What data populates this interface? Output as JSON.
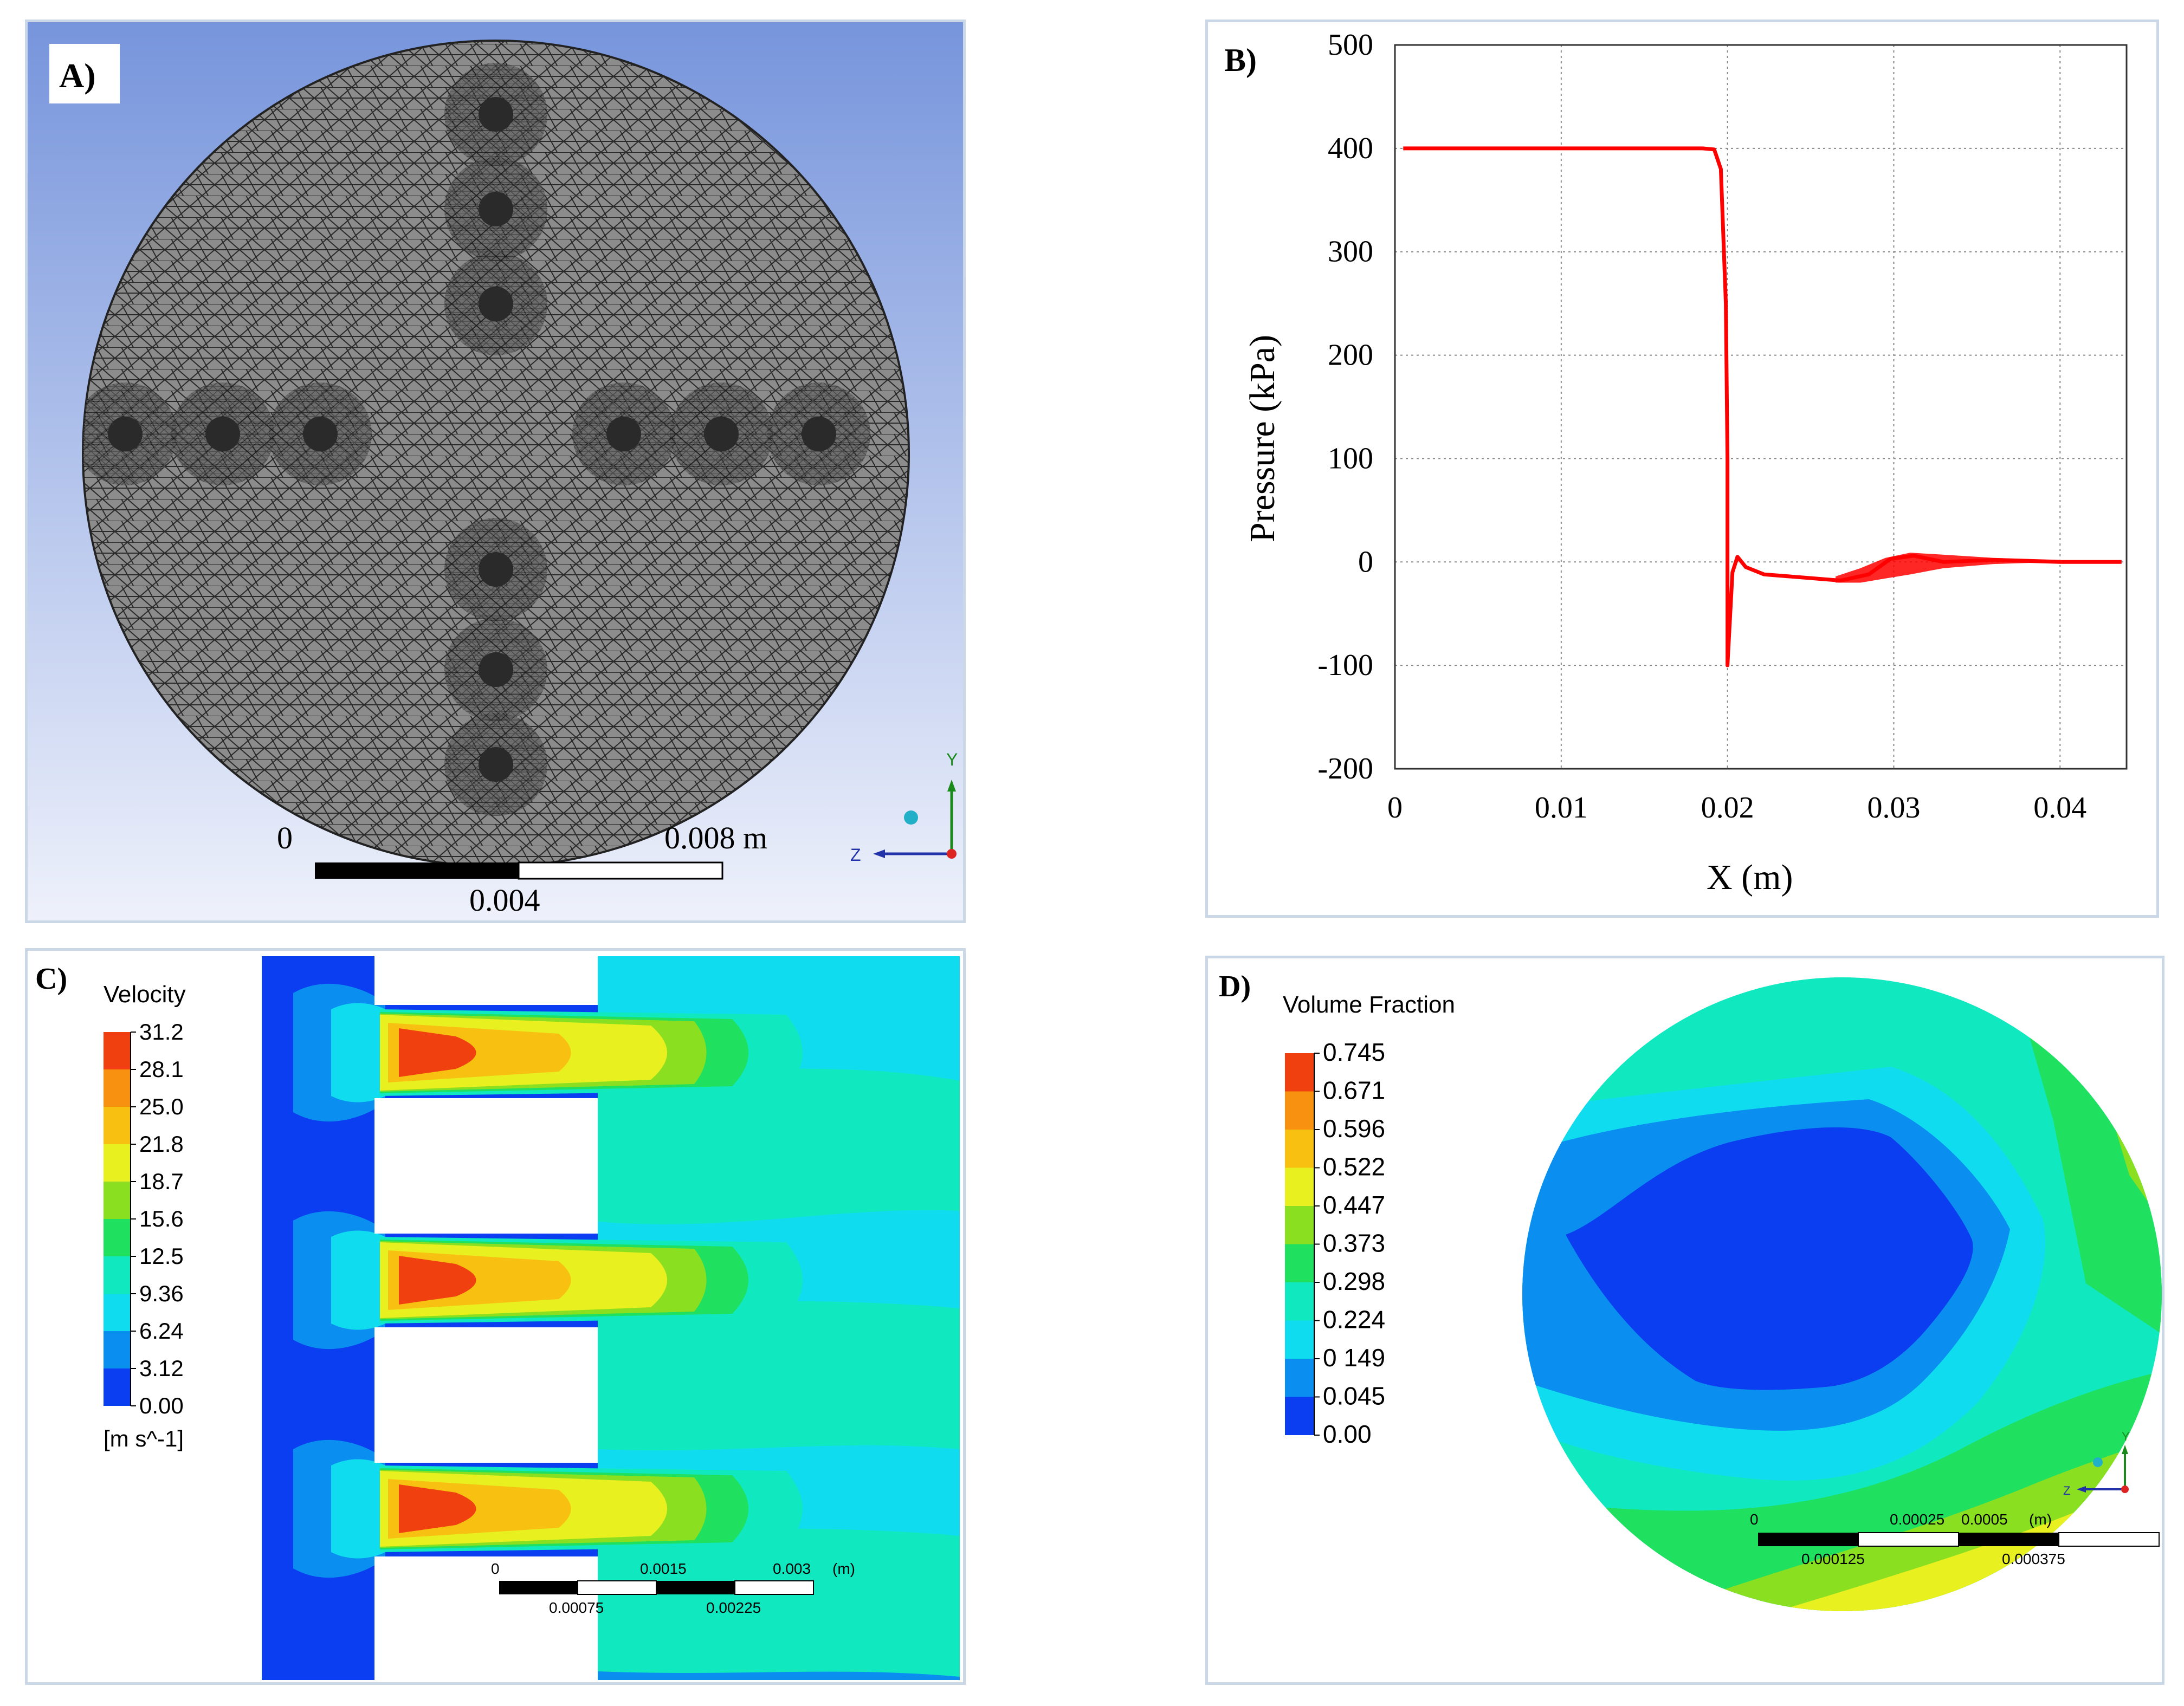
{
  "colors": {
    "mesh_bg_top": "#7b98de",
    "mesh_bg_bottom": "#eef1fb",
    "mesh_fill": "#8a8a8a",
    "curve": "#ff0000",
    "contour_scale": [
      "#0a3ef0",
      "#0a8ff0",
      "#10dcf0",
      "#10e8c0",
      "#20e060",
      "#8ae020",
      "#e8f020",
      "#f8c010",
      "#f89010",
      "#f04010"
    ]
  },
  "panel_a": {
    "label": "A)",
    "scale_left": "0",
    "scale_right": "0.008 m",
    "scale_mid": "0.004",
    "axis_y": "Y",
    "axis_z": "Z"
  },
  "panel_b": {
    "label": "B)",
    "chart_data": {
      "type": "line",
      "title": "",
      "xlabel": "X (m)",
      "ylabel": "Pressure (kPa)",
      "xlim": [
        0,
        0.044
      ],
      "ylim": [
        -200,
        500
      ],
      "xticks": [
        0,
        0.01,
        0.02,
        0.03,
        0.04
      ],
      "yticks": [
        -200,
        -100,
        0,
        100,
        200,
        300,
        400,
        500
      ],
      "xtick_labels": [
        "0",
        "0.01",
        "0.02",
        "0.03",
        "0.04"
      ],
      "ytick_labels": [
        "-200",
        "-100",
        "0",
        "100",
        "200",
        "300",
        "400",
        "500"
      ],
      "grid": true,
      "series": [
        {
          "name": "Pressure",
          "x": [
            0.0005,
            0.0185,
            0.0192,
            0.0196,
            0.0199,
            0.02,
            0.02,
            0.0203,
            0.0206,
            0.0211,
            0.0222,
            0.0245,
            0.0268,
            0.0285,
            0.0298,
            0.0312,
            0.033,
            0.036,
            0.04,
            0.0437
          ],
          "y": [
            400,
            400,
            399,
            380,
            250,
            100,
            -100,
            -10,
            5,
            -5,
            -12,
            -15,
            -18,
            -12,
            3,
            6,
            0,
            2,
            0,
            0
          ]
        }
      ]
    }
  },
  "panel_c": {
    "label": "C)",
    "legend_title": "Velocity",
    "legend_values": [
      "31.2",
      "28.1",
      "25.0",
      "21.8",
      "18.7",
      "15.6",
      "12.5",
      "9.36",
      "6.24",
      "3.12",
      "0.00"
    ],
    "legend_unit": "[m s^-1]",
    "scale_top": [
      "0",
      "0.0015",
      "0.003",
      "(m)"
    ],
    "scale_bottom": [
      "0.00075",
      "0.00225"
    ]
  },
  "panel_d": {
    "label": "D)",
    "legend_title": "Volume Fraction",
    "legend_values": [
      "0.745",
      "0.671",
      "0.596",
      "0.522",
      "0.447",
      "0.373",
      "0.298",
      "0.224",
      "0 149",
      "0.045",
      "0.00"
    ],
    "scale_top": [
      "0",
      "0.00025",
      "0.0005",
      "(m)"
    ],
    "scale_bottom": [
      "0.000125",
      "0.000375"
    ],
    "axis_y": "Y",
    "axis_z": "Z"
  }
}
